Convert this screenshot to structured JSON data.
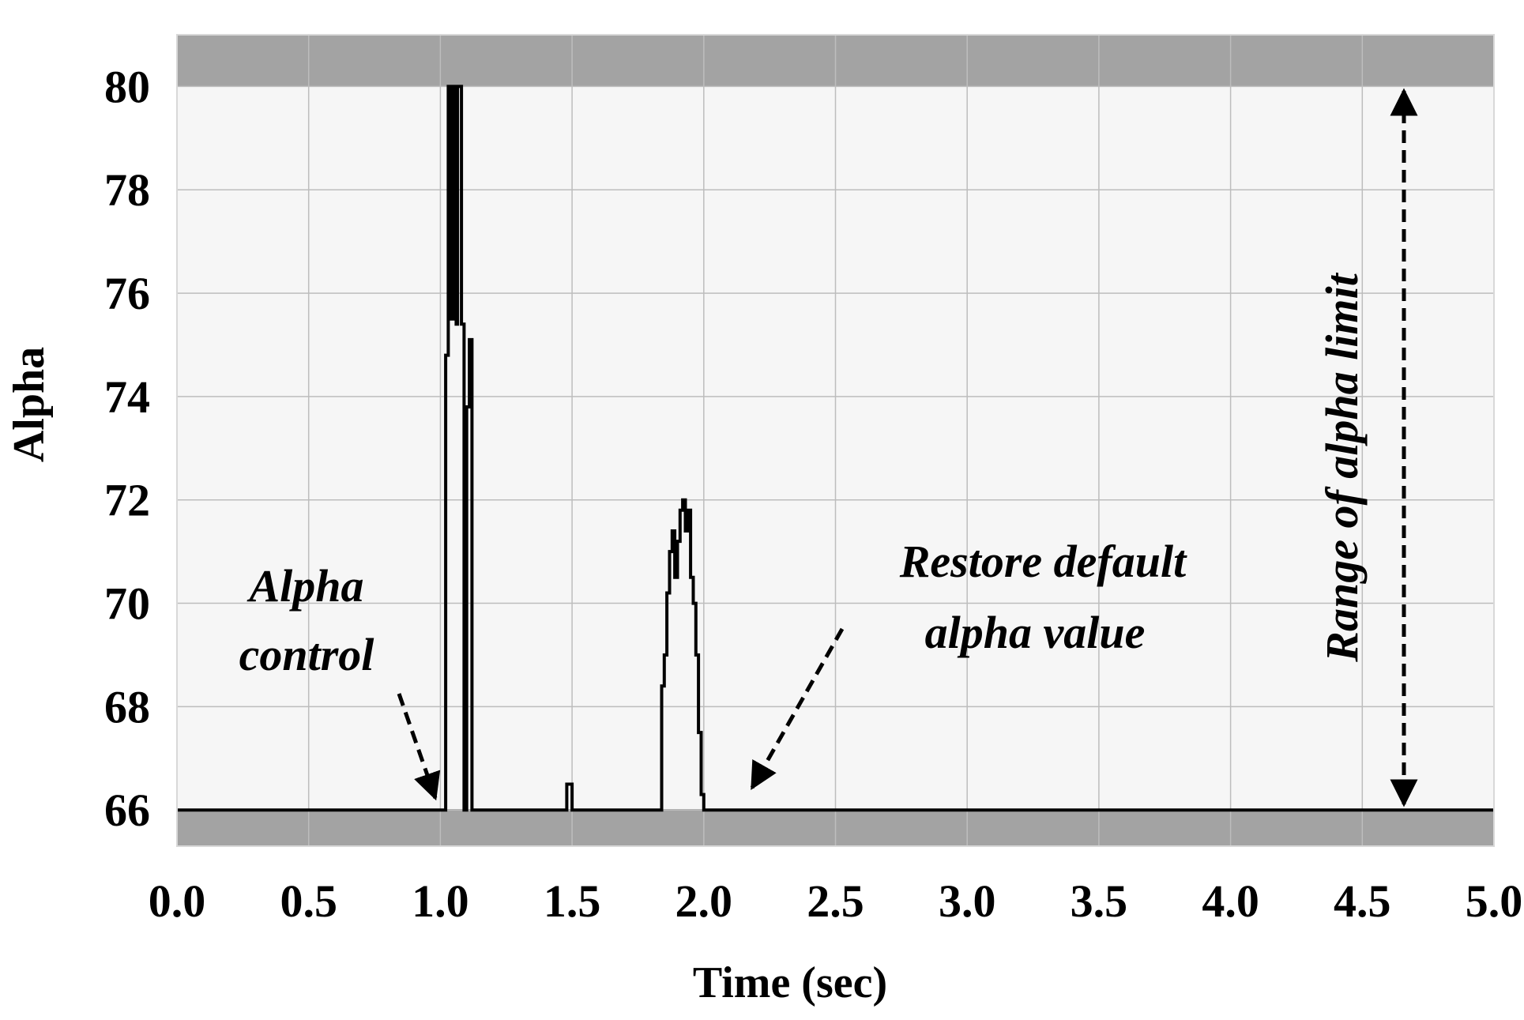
{
  "chart_data": {
    "type": "line",
    "title": "",
    "xlabel": "Time (sec)",
    "ylabel": "Alpha",
    "xlim": [
      0.0,
      5.0
    ],
    "ylim": [
      65.3,
      81.0
    ],
    "xticks": [
      "0.0",
      "0.5",
      "1.0",
      "1.5",
      "2.0",
      "2.5",
      "3.0",
      "3.5",
      "4.0",
      "4.5",
      "5.0"
    ],
    "yticks": [
      "66",
      "68",
      "70",
      "72",
      "74",
      "76",
      "78",
      "80"
    ],
    "grid": true,
    "limit_bands": {
      "lower": 66,
      "upper": 80
    },
    "series": [
      {
        "x": [
          0.0,
          1.01,
          1.02,
          1.02,
          1.03,
          1.03,
          1.04,
          1.04,
          1.05,
          1.05,
          1.06,
          1.06,
          1.065,
          1.065,
          1.07,
          1.07,
          1.08,
          1.08,
          1.09,
          1.09,
          1.1,
          1.1,
          1.11,
          1.11,
          1.12,
          1.12,
          1.13,
          1.13,
          1.14,
          1.14,
          1.15,
          1.15,
          1.48,
          1.48,
          1.5,
          1.5,
          1.84,
          1.84,
          1.85,
          1.85,
          1.86,
          1.86,
          1.87,
          1.87,
          1.88,
          1.88,
          1.89,
          1.89,
          1.9,
          1.9,
          1.91,
          1.91,
          1.92,
          1.92,
          1.93,
          1.93,
          1.94,
          1.94,
          1.95,
          1.95,
          1.96,
          1.96,
          1.97,
          1.97,
          1.98,
          1.98,
          1.99,
          1.99,
          2.0,
          2.0,
          2.01,
          2.01,
          2.02,
          2.02,
          2.03,
          2.03,
          2.04,
          2.04,
          2.05,
          2.05,
          2.06,
          2.06,
          2.07,
          2.07,
          5.0
        ],
        "y": [
          66,
          66,
          66,
          74.8,
          74.8,
          80.0,
          80.0,
          75.5,
          75.5,
          80.0,
          80.0,
          75.4,
          75.4,
          80.0,
          80.0,
          80.0,
          80.0,
          75.4,
          75.4,
          66,
          66,
          73.8,
          73.8,
          75.1,
          75.1,
          66,
          66,
          66,
          66,
          66,
          66,
          66,
          66,
          66.5,
          66.5,
          66,
          66,
          68.4,
          68.4,
          69.0,
          69.0,
          70.2,
          70.2,
          71.0,
          71.0,
          71.4,
          71.4,
          70.5,
          70.5,
          71.2,
          71.2,
          71.8,
          71.8,
          72.0,
          72.0,
          71.4,
          71.4,
          71.8,
          71.8,
          70.5,
          70.5,
          70.0,
          70.0,
          69.0,
          69.0,
          67.5,
          67.5,
          66.3,
          66.3,
          66,
          66,
          66,
          66,
          66,
          66,
          66,
          66,
          66,
          66,
          66,
          66,
          66,
          66,
          66,
          66
        ]
      }
    ],
    "annotations": [
      {
        "lines": [
          "Alpha",
          "control"
        ]
      },
      {
        "lines": [
          "Restore default",
          "alpha value"
        ]
      },
      {
        "lines": [
          "Range of alpha limit"
        ]
      }
    ]
  }
}
